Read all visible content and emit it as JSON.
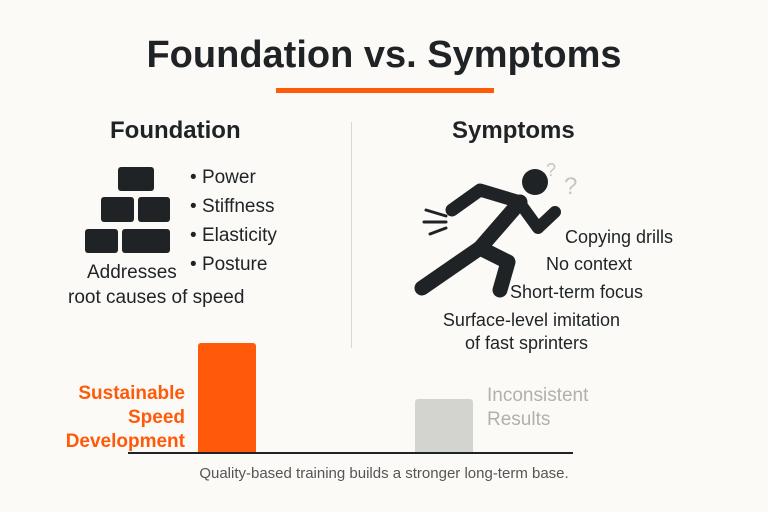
{
  "title": "Foundation vs. Symptoms",
  "foundation": {
    "heading": "Foundation",
    "icon": "bricks-icon",
    "bullets": [
      "Power",
      "Stiffness",
      "Elasticity",
      "Posture"
    ],
    "caption_line1": "Addresses",
    "caption_line2": "root causes of speed"
  },
  "symptoms": {
    "heading": "Symptoms",
    "icon": "running-person-icon",
    "items": [
      "Copying drills",
      "No context",
      "Short-term focus",
      "Surface-level imitation",
      "of fast sprinters"
    ]
  },
  "bars": {
    "sustainable": {
      "label_lines": [
        "Sustainable",
        "Speed",
        "Development"
      ],
      "color": "#ff5a0a",
      "relative_level": 1.0
    },
    "inconsistent": {
      "label_lines": [
        "Inconsistent",
        "Results"
      ],
      "color": "#d3d3d0",
      "relative_level": 0.49
    }
  },
  "footer": "Quality-based training builds a stronger long-term base.",
  "colors": {
    "accent": "#ff5a0a",
    "text": "#1f2326",
    "muted": "#b0b0ae"
  }
}
